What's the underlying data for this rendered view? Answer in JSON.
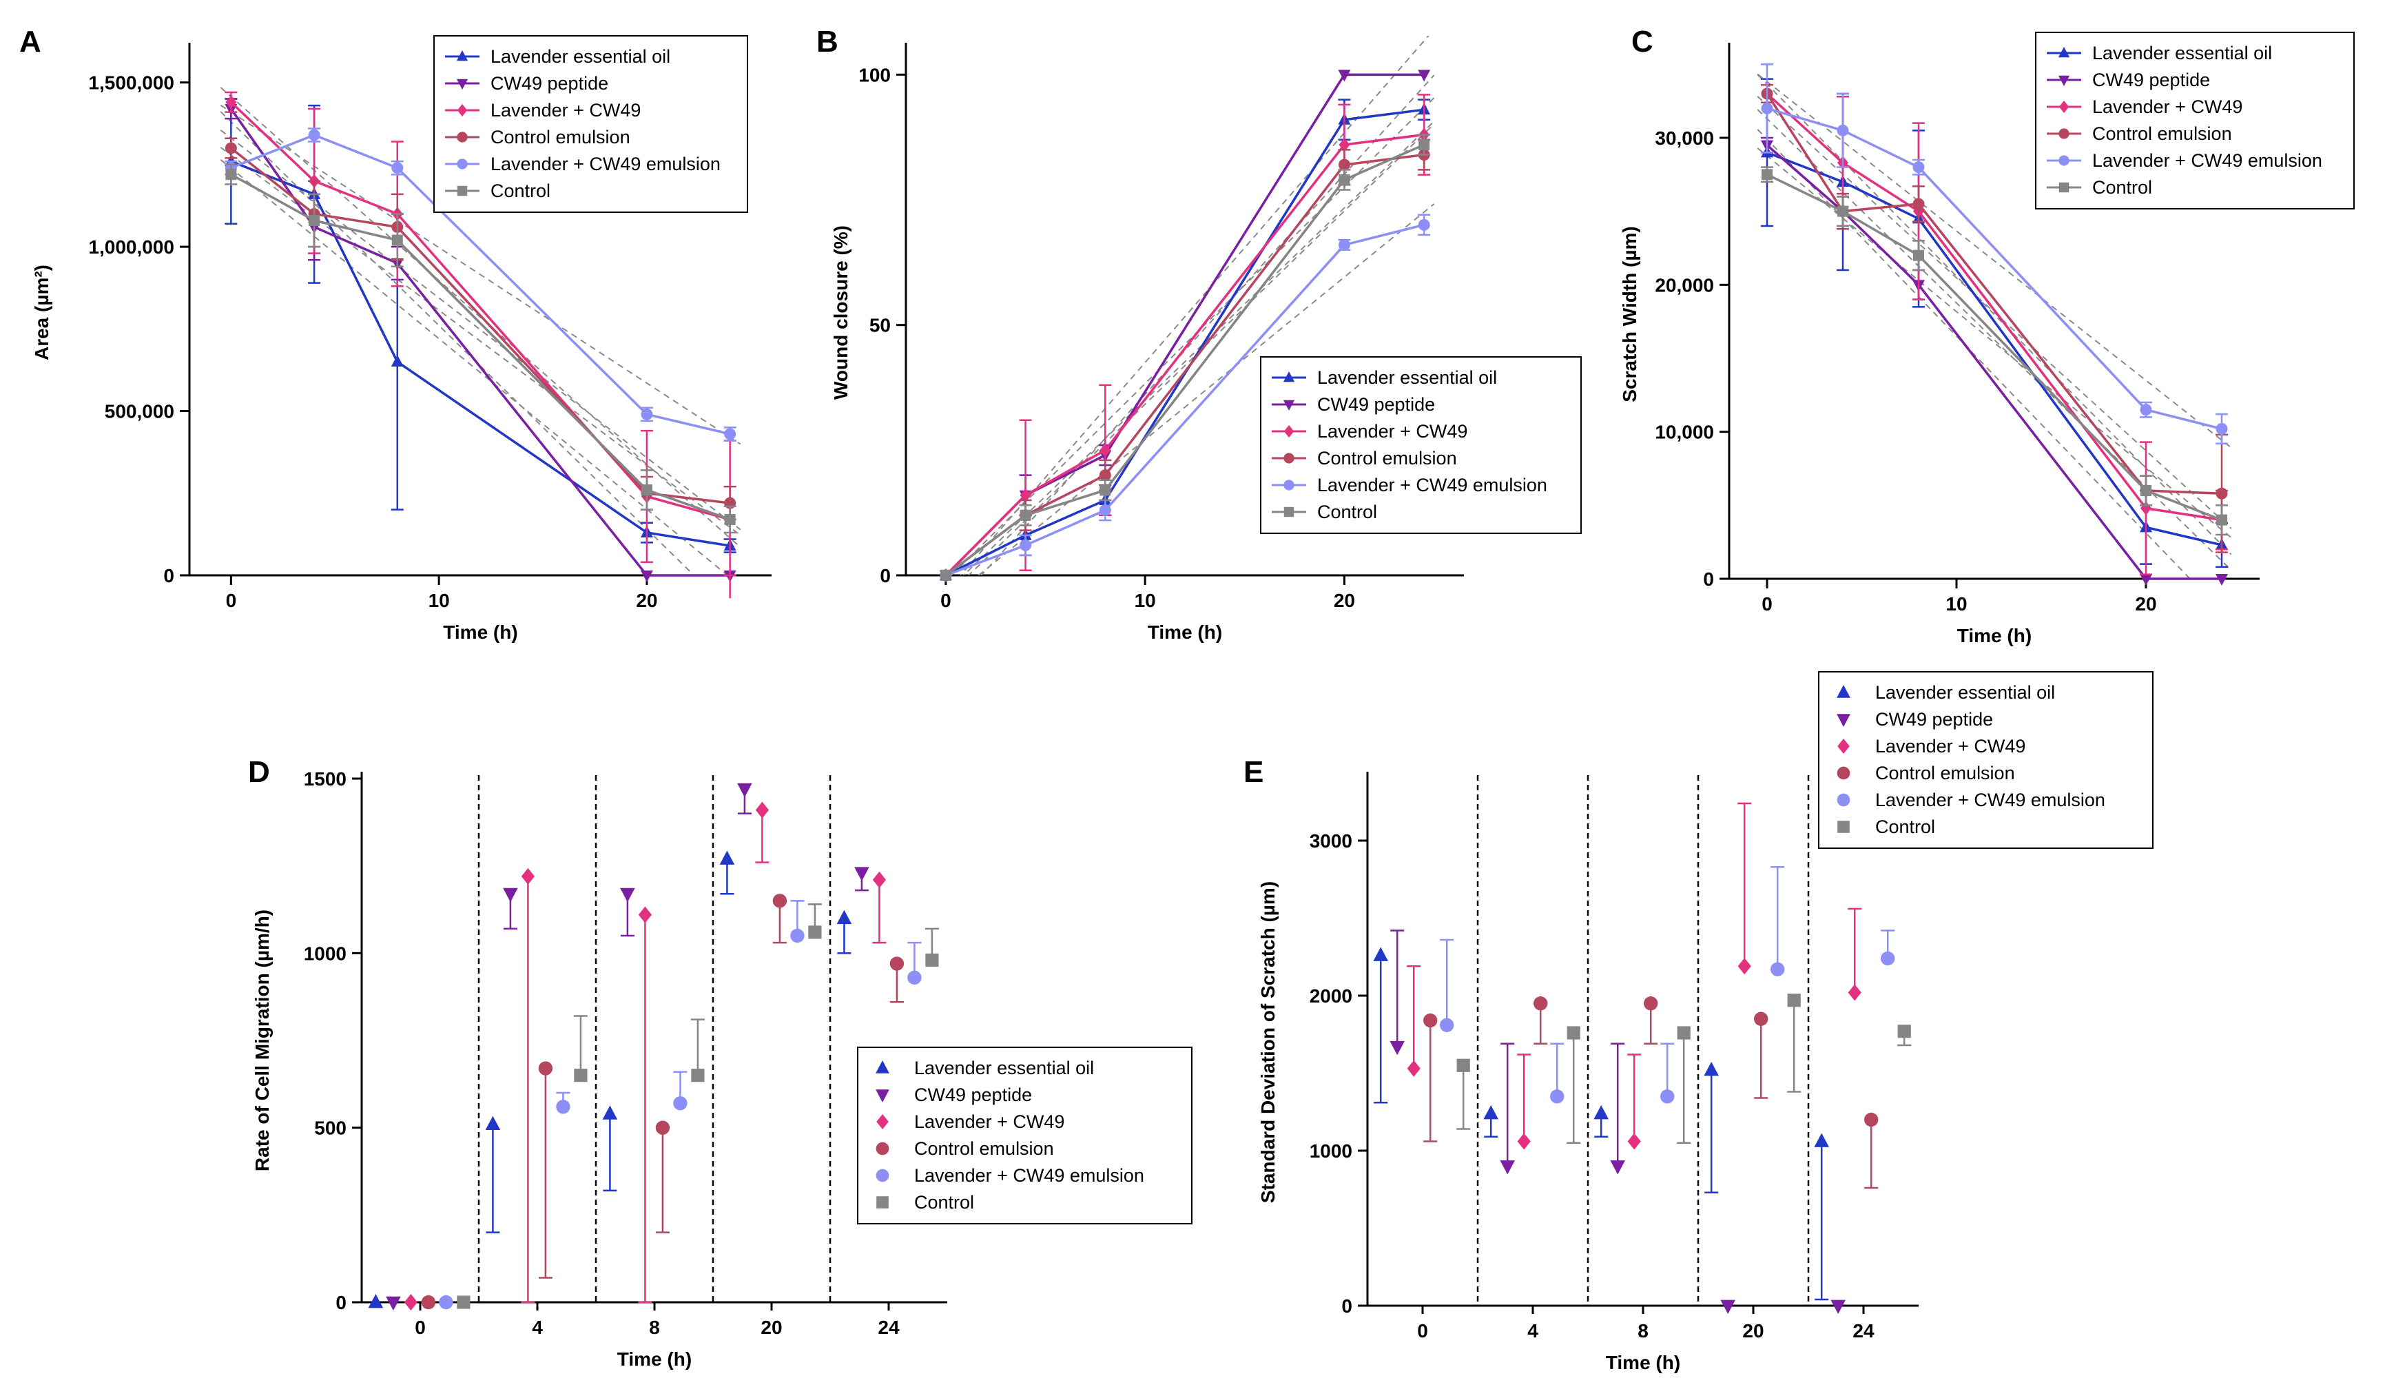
{
  "figure": {
    "series_names": [
      "Lavender essential oil",
      "CW49 peptide",
      "Lavender + CW49",
      "Control emulsion",
      "Lavender + CW49 emulsion",
      "Control"
    ],
    "series_colors": [
      "#2137c7",
      "#7a1fa2",
      "#e3307f",
      "#b5465e",
      "#8c8ff5",
      "#858585"
    ],
    "series_markers": [
      "triangle",
      "triangle-down",
      "diamond",
      "circle",
      "circle",
      "square"
    ]
  },
  "chart_data": [
    {
      "panel": "A",
      "type": "line",
      "xlabel": "Time (h)",
      "ylabel": "Area (µm²)",
      "x": [
        0,
        4,
        8,
        20,
        24
      ],
      "xlim": [
        -2,
        26
      ],
      "ylim": [
        0,
        1600000
      ],
      "xticks": [
        0,
        10,
        20
      ],
      "xtick_labels": [
        "0",
        "10",
        "20"
      ],
      "yticks": [
        0,
        500000,
        1000000,
        1500000
      ],
      "ytick_labels": [
        "0",
        "500,000",
        "1,000,000",
        "1,500,000"
      ],
      "legend": "top-right",
      "series": [
        {
          "name": "Lavender essential oil",
          "values": [
            1260000,
            1160000,
            650000,
            130000,
            90000
          ],
          "err": [
            190000,
            270000,
            450000,
            30000,
            20000
          ]
        },
        {
          "name": "CW49 peptide",
          "values": [
            1420000,
            1060000,
            950000,
            0,
            0
          ],
          "err": [
            30000,
            100000,
            50000,
            0,
            0
          ]
        },
        {
          "name": "Lavender + CW49",
          "values": [
            1440000,
            1200000,
            1100000,
            240000,
            170000
          ],
          "err": [
            30000,
            220000,
            220000,
            200000,
            240000
          ]
        },
        {
          "name": "Control emulsion",
          "values": [
            1300000,
            1100000,
            1060000,
            250000,
            220000
          ],
          "err": [
            30000,
            100000,
            100000,
            50000,
            50000
          ]
        },
        {
          "name": "Lavender + CW49 emulsion",
          "values": [
            1240000,
            1340000,
            1240000,
            490000,
            430000
          ],
          "err": [
            20000,
            20000,
            20000,
            20000,
            20000
          ]
        },
        {
          "name": "Control",
          "values": [
            1220000,
            1080000,
            1020000,
            260000,
            170000
          ],
          "err": [
            30000,
            80000,
            80000,
            60000,
            40000
          ]
        }
      ]
    },
    {
      "panel": "B",
      "type": "line",
      "xlabel": "Time (h)",
      "ylabel": "Wound closure (%)",
      "x": [
        0,
        4,
        8,
        20,
        24
      ],
      "xlim": [
        -2,
        26
      ],
      "ylim": [
        0,
        105
      ],
      "xticks": [
        0,
        10,
        20
      ],
      "xtick_labels": [
        "0",
        "10",
        "20"
      ],
      "yticks": [
        0,
        50,
        100
      ],
      "ytick_labels": [
        "0",
        "50",
        "100"
      ],
      "legend": "center-right",
      "series": [
        {
          "name": "Lavender essential oil",
          "values": [
            0,
            8,
            15,
            91,
            93
          ],
          "err": [
            0,
            4,
            3,
            4,
            2
          ]
        },
        {
          "name": "CW49 peptide",
          "values": [
            0,
            16,
            24,
            100,
            100
          ],
          "err": [
            0,
            4,
            2,
            0,
            0
          ]
        },
        {
          "name": "Lavender + CW49",
          "values": [
            0,
            16,
            25,
            86,
            88
          ],
          "err": [
            0,
            15,
            13,
            8,
            8
          ]
        },
        {
          "name": "Control emulsion",
          "values": [
            0,
            12,
            20,
            82,
            84
          ],
          "err": [
            0,
            3,
            3,
            3,
            3
          ]
        },
        {
          "name": "Lavender + CW49 emulsion",
          "values": [
            0,
            6,
            13,
            66,
            70
          ],
          "err": [
            0,
            2,
            2,
            1,
            2
          ]
        },
        {
          "name": "Control",
          "values": [
            0,
            12,
            17,
            79,
            86
          ],
          "err": [
            0,
            2,
            2,
            2,
            2
          ]
        }
      ]
    },
    {
      "panel": "C",
      "type": "line",
      "xlabel": "Time (h)",
      "ylabel": "Scratch Width (µm)",
      "x": [
        0,
        4,
        8,
        20,
        24
      ],
      "xlim": [
        -2,
        26
      ],
      "ylim": [
        0,
        36000
      ],
      "xticks": [
        0,
        10,
        20
      ],
      "xtick_labels": [
        "0",
        "10",
        "20"
      ],
      "yticks": [
        0,
        10000,
        20000,
        30000
      ],
      "ytick_labels": [
        "0",
        "10,000",
        "20,000",
        "30,000"
      ],
      "legend": "top-right",
      "series": [
        {
          "name": "Lavender essential oil",
          "values": [
            29000,
            27000,
            24500,
            3500,
            2300
          ],
          "err": [
            5000,
            6000,
            6000,
            2500,
            1500
          ]
        },
        {
          "name": "CW49 peptide",
          "values": [
            29500,
            25000,
            20000,
            0,
            0
          ],
          "err": [
            500,
            1000,
            1000,
            0,
            0
          ]
        },
        {
          "name": "Lavender + CW49",
          "values": [
            33000,
            28300,
            25000,
            4800,
            4000
          ],
          "err": [
            600,
            4500,
            6000,
            4500,
            2000
          ]
        },
        {
          "name": "Control emulsion",
          "values": [
            33000,
            25000,
            25500,
            6000,
            5800
          ],
          "err": [
            600,
            1200,
            1200,
            1000,
            4000
          ]
        },
        {
          "name": "Lavender + CW49 emulsion",
          "values": [
            32000,
            30500,
            28000,
            11500,
            10200
          ],
          "err": [
            3000,
            2500,
            500,
            500,
            1000
          ]
        },
        {
          "name": "Control",
          "values": [
            27500,
            25000,
            22000,
            6000,
            4000
          ],
          "err": [
            500,
            1000,
            1000,
            1000,
            1000
          ]
        }
      ]
    },
    {
      "panel": "D",
      "type": "scatter",
      "xlabel": "Time (h)",
      "ylabel": "Rate of Cell Migration (µm/h)",
      "categories": [
        "0",
        "4",
        "8",
        "20",
        "24"
      ],
      "ylim": [
        0,
        1500
      ],
      "yticks": [
        0,
        500,
        1000,
        1500
      ],
      "ytick_labels": [
        "0",
        "500",
        "1000",
        "1500"
      ],
      "legend": "bottom-right",
      "series": [
        {
          "name": "Lavender essential oil",
          "values": [
            0,
            510,
            540,
            1270,
            1100
          ],
          "err": [
            [
              0,
              0
            ],
            [
              310,
              0
            ],
            [
              220,
              0
            ],
            [
              100,
              0
            ],
            [
              100,
              0
            ]
          ]
        },
        {
          "name": "CW49 peptide",
          "values": [
            0,
            1170,
            1170,
            1470,
            1230
          ],
          "err": [
            [
              0,
              0
            ],
            [
              100,
              0
            ],
            [
              120,
              0
            ],
            [
              70,
              0
            ],
            [
              50,
              0
            ]
          ]
        },
        {
          "name": "Lavender + CW49",
          "values": [
            0,
            1220,
            1110,
            1410,
            1210
          ],
          "err": [
            [
              0,
              0
            ],
            [
              1220,
              0
            ],
            [
              1110,
              0
            ],
            [
              150,
              0
            ],
            [
              180,
              0
            ]
          ]
        },
        {
          "name": "Control emulsion",
          "values": [
            0,
            670,
            500,
            1150,
            970
          ],
          "err": [
            [
              0,
              0
            ],
            [
              600,
              0
            ],
            [
              300,
              0
            ],
            [
              120,
              0
            ],
            [
              110,
              0
            ]
          ]
        },
        {
          "name": "Lavender + CW49 emulsion",
          "values": [
            0,
            560,
            570,
            1050,
            930
          ],
          "err": [
            [
              0,
              0
            ],
            [
              0,
              40
            ],
            [
              0,
              90
            ],
            [
              0,
              100
            ],
            [
              0,
              100
            ]
          ]
        },
        {
          "name": "Control",
          "values": [
            0,
            650,
            650,
            1060,
            980
          ],
          "err": [
            [
              0,
              0
            ],
            [
              0,
              170
            ],
            [
              0,
              160
            ],
            [
              0,
              80
            ],
            [
              0,
              90
            ]
          ]
        }
      ]
    },
    {
      "panel": "E",
      "type": "scatter",
      "xlabel": "Time (h)",
      "ylabel": "Standard Deviation of Scratch (µm)",
      "categories": [
        "0",
        "4",
        "8",
        "20",
        "24"
      ],
      "ylim": [
        0,
        3400
      ],
      "yticks": [
        0,
        1000,
        2000,
        3000
      ],
      "ytick_labels": [
        "0",
        "1000",
        "2000",
        "3000"
      ],
      "legend": "top-right",
      "series": [
        {
          "name": "Lavender essential oil",
          "values": [
            2260,
            1240,
            1240,
            1520,
            1060
          ],
          "err": [
            [
              950,
              0
            ],
            [
              150,
              0
            ],
            [
              150,
              0
            ],
            [
              790,
              0
            ],
            [
              1020,
              0
            ]
          ]
        },
        {
          "name": "CW49 peptide",
          "values": [
            1670,
            900,
            900,
            0,
            0
          ],
          "err": [
            [
              0,
              750
            ],
            [
              0,
              790
            ],
            [
              0,
              790
            ],
            [
              0,
              0
            ],
            [
              0,
              0
            ]
          ]
        },
        {
          "name": "Lavender + CW49",
          "values": [
            1530,
            1060,
            1060,
            2190,
            2020
          ],
          "err": [
            [
              0,
              660
            ],
            [
              0,
              560
            ],
            [
              0,
              560
            ],
            [
              0,
              1050
            ],
            [
              0,
              540
            ]
          ]
        },
        {
          "name": "Control emulsion",
          "values": [
            1840,
            1950,
            1950,
            1850,
            1200
          ],
          "err": [
            [
              780,
              0
            ],
            [
              260,
              0
            ],
            [
              260,
              0
            ],
            [
              510,
              0
            ],
            [
              440,
              0
            ]
          ]
        },
        {
          "name": "Lavender + CW49 emulsion",
          "values": [
            1810,
            1350,
            1350,
            2170,
            2240
          ],
          "err": [
            [
              0,
              550
            ],
            [
              0,
              340
            ],
            [
              0,
              340
            ],
            [
              0,
              660
            ],
            [
              0,
              180
            ]
          ]
        },
        {
          "name": "Control",
          "values": [
            1550,
            1760,
            1760,
            1970,
            1770
          ],
          "err": [
            [
              410,
              0
            ],
            [
              710,
              0
            ],
            [
              710,
              0
            ],
            [
              590,
              0
            ],
            [
              90,
              0
            ]
          ]
        }
      ]
    }
  ]
}
